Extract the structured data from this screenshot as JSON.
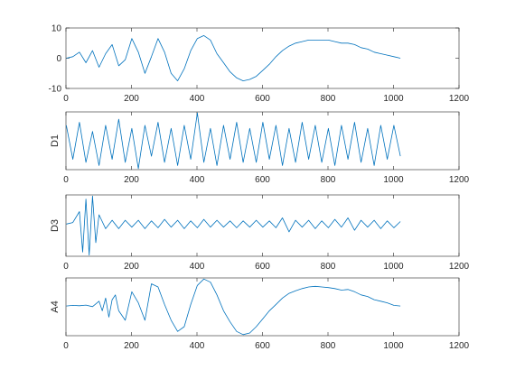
{
  "chart_data": [
    {
      "type": "line",
      "ylabel": "",
      "xlim": [
        0,
        1200
      ],
      "ylim": [
        -10,
        10
      ],
      "xticks": [
        0,
        200,
        400,
        600,
        800,
        1000,
        1200
      ],
      "yticks": [
        -10,
        0,
        10
      ],
      "series": [
        {
          "x": [
            1,
            21,
            41,
            61,
            81,
            101,
            121,
            141,
            161,
            181,
            201,
            221,
            241,
            261,
            281,
            301,
            321,
            341,
            361,
            381,
            401,
            421,
            441,
            461,
            481,
            501,
            521,
            541,
            561,
            581,
            601,
            621,
            641,
            661,
            681,
            701,
            721,
            741,
            761,
            781,
            801,
            821,
            841,
            861,
            881,
            901,
            921,
            941,
            961,
            981,
            1001,
            1021
          ],
          "y": [
            0,
            0.5,
            2,
            -1.5,
            2.5,
            -3,
            1.5,
            4.5,
            -2.5,
            -0.5,
            6.5,
            2,
            -5,
            0.5,
            6.5,
            2,
            -5,
            -7.5,
            -3.5,
            2.5,
            6.5,
            7.5,
            6,
            1.5,
            -1.5,
            -4.5,
            -6.5,
            -7.5,
            -7,
            -6,
            -4,
            -2,
            0.5,
            2.5,
            4,
            5,
            5.5,
            6,
            6,
            6,
            6,
            5.5,
            5,
            5,
            4.5,
            3.5,
            3,
            2,
            1.5,
            1,
            0.5,
            0
          ]
        }
      ]
    },
    {
      "type": "line",
      "ylabel": "D1",
      "xlim": [
        0,
        1200
      ],
      "xticks": [
        0,
        200,
        400,
        600,
        800,
        1000,
        1200
      ],
      "series": [
        {
          "x": [
            1,
            21,
            41,
            61,
            81,
            101,
            121,
            141,
            161,
            181,
            201,
            221,
            241,
            261,
            281,
            301,
            321,
            341,
            361,
            381,
            401,
            421,
            441,
            461,
            481,
            501,
            521,
            541,
            561,
            581,
            601,
            621,
            641,
            661,
            681,
            701,
            721,
            741,
            761,
            781,
            801,
            821,
            841,
            861,
            881,
            901,
            921,
            941,
            961,
            981,
            1001,
            1021
          ],
          "y": [
            0.6,
            -0.5,
            0.7,
            -0.6,
            0.4,
            -0.7,
            0.6,
            -0.5,
            0.8,
            -0.6,
            0.5,
            -0.8,
            0.6,
            -0.4,
            0.7,
            -0.6,
            0.5,
            -0.7,
            0.6,
            -0.5,
            1.0,
            -0.6,
            0.5,
            -0.7,
            0.6,
            -0.5,
            0.7,
            -0.6,
            0.5,
            -0.6,
            0.7,
            -0.5,
            0.6,
            -0.7,
            0.5,
            -0.6,
            0.7,
            -0.5,
            0.6,
            -0.6,
            0.5,
            -0.7,
            0.6,
            -0.5,
            0.7,
            -0.6,
            0.5,
            -0.7,
            0.6,
            -0.5,
            0.6,
            -0.4
          ]
        }
      ]
    },
    {
      "type": "line",
      "ylabel": "D3",
      "xlim": [
        0,
        1200
      ],
      "xticks": [
        0,
        200,
        400,
        600,
        800,
        1000,
        1200
      ],
      "series": [
        {
          "x": [
            1,
            21,
            41,
            51,
            61,
            71,
            81,
            91,
            101,
            121,
            141,
            161,
            181,
            201,
            221,
            241,
            261,
            281,
            301,
            321,
            341,
            361,
            381,
            401,
            421,
            441,
            461,
            481,
            501,
            521,
            541,
            561,
            581,
            601,
            621,
            641,
            661,
            681,
            701,
            721,
            741,
            761,
            781,
            801,
            821,
            841,
            861,
            881,
            901,
            921,
            941,
            961,
            981,
            1001,
            1021
          ],
          "y": [
            0,
            0.05,
            0.4,
            -0.9,
            0.8,
            -1.0,
            0.9,
            -0.6,
            0.3,
            -0.15,
            0.12,
            -0.15,
            0.12,
            -0.1,
            0.12,
            -0.15,
            0.1,
            -0.12,
            0.15,
            -0.1,
            0.12,
            -0.15,
            0.1,
            -0.12,
            0.15,
            -0.1,
            0.12,
            -0.1,
            0.1,
            -0.12,
            0.1,
            -0.1,
            0.12,
            -0.1,
            0.1,
            -0.12,
            0.2,
            -0.25,
            0.12,
            -0.1,
            0.12,
            -0.15,
            0.1,
            -0.12,
            0.15,
            -0.1,
            0.2,
            -0.2,
            0.12,
            -0.1,
            0.12,
            -0.15,
            0.1,
            -0.12,
            0.08
          ]
        }
      ]
    },
    {
      "type": "line",
      "ylabel": "A4",
      "xlim": [
        0,
        1200
      ],
      "xticks": [
        0,
        200,
        400,
        600,
        800,
        1000,
        1200
      ],
      "series": [
        {
          "x": [
            1,
            21,
            41,
            61,
            81,
            101,
            111,
            121,
            131,
            141,
            151,
            161,
            181,
            201,
            221,
            241,
            261,
            281,
            301,
            321,
            341,
            361,
            381,
            401,
            421,
            441,
            461,
            481,
            501,
            521,
            541,
            561,
            581,
            601,
            621,
            641,
            661,
            681,
            701,
            721,
            741,
            761,
            781,
            801,
            821,
            841,
            861,
            881,
            901,
            921,
            941,
            961,
            981,
            1001,
            1021
          ],
          "y": [
            0,
            0.2,
            0.1,
            0.3,
            -0.2,
            1.5,
            -1.5,
            2.5,
            -3.5,
            2.0,
            3.5,
            -1.5,
            -4.5,
            4.5,
            1.0,
            -4.5,
            7.0,
            6.0,
            0.5,
            -4.5,
            -8.0,
            -6.5,
            0.5,
            6.5,
            8.5,
            7.5,
            3.5,
            -1.5,
            -5.0,
            -8.0,
            -9.0,
            -8.5,
            -6.5,
            -4.0,
            -1.5,
            0.5,
            2.5,
            4.0,
            4.8,
            5.5,
            6.0,
            6.2,
            6.0,
            5.8,
            5.5,
            5.0,
            5.2,
            4.5,
            3.5,
            3.0,
            2.0,
            1.5,
            1.0,
            0.2,
            0.0
          ]
        }
      ]
    }
  ]
}
